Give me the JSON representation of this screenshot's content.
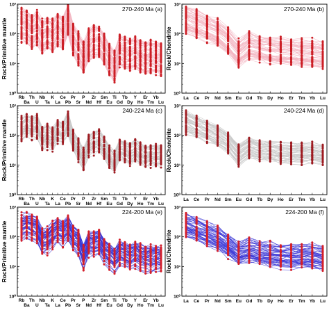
{
  "chart_data": [
    {
      "type": "line",
      "panel_label": "270-240 Ma",
      "letter": "(a)",
      "ylabel": "Rock/Primitive mantle",
      "elements": [
        "Rb",
        "Ba",
        "Th",
        "U",
        "Nb",
        "Ta",
        "K",
        "La",
        "Ce",
        "Pb",
        "Pr",
        "Sr",
        "P",
        "Nd",
        "Zr",
        "Hf",
        "Sm",
        "Eu",
        "Ti",
        "Gd",
        "Tb",
        "Dy",
        "Y",
        "Ho",
        "Er",
        "Tm",
        "Yb",
        "Lu"
      ],
      "tick_rows": {
        "top": [
          "Rb",
          "Th",
          "Nb",
          "K",
          "Ce",
          "Pr",
          "P",
          "Zr",
          "Sm",
          "Ti",
          "Tb",
          "Y",
          "Er",
          "Yb"
        ],
        "bottom": [
          "Ba",
          "U",
          "Ta",
          "La",
          "Pb",
          "Sr",
          "Nd",
          "Hf",
          "Eu",
          "Gd",
          "Dy",
          "Ho",
          "Tm",
          "Lu"
        ]
      },
      "yscale": "log",
      "ylim": [
        1,
        1000
      ],
      "y_ticks": [
        "10⁰",
        "10¹",
        "10²",
        "10³"
      ],
      "line_color": "#f3b9c4",
      "marker_color": "#cc1f26",
      "median_log10": [
        2.3,
        2.25,
        2.1,
        2.2,
        1.9,
        2.0,
        1.95,
        2.15,
        2.0,
        2.5,
        1.8,
        1.5,
        1.2,
        1.6,
        1.75,
        1.75,
        1.5,
        1.15,
        0.9,
        1.45,
        1.35,
        1.3,
        1.35,
        1.25,
        1.2,
        1.2,
        1.2,
        1.15
      ],
      "spread": 0.5,
      "samples": 60
    },
    {
      "type": "line",
      "panel_label": "270-240 Ma",
      "letter": "(b)",
      "ylabel": "Rock/Chondrite",
      "elements": [
        "La",
        "Ce",
        "Pr",
        "Nd",
        "Sm",
        "Eu",
        "Gd",
        "Tb",
        "Dy",
        "Ho",
        "Er",
        "Tm",
        "Yb",
        "Lu"
      ],
      "yscale": "log",
      "ylim": [
        1,
        1000
      ],
      "y_ticks": [
        "10⁰",
        "10¹",
        "10²",
        "10³"
      ],
      "line_color": "#f3b9c4",
      "marker_color": "#cc1f26",
      "median_log10": [
        2.5,
        2.35,
        2.2,
        2.05,
        1.75,
        1.35,
        1.6,
        1.5,
        1.45,
        1.4,
        1.4,
        1.35,
        1.35,
        1.3
      ],
      "spread": 0.42,
      "samples": 60
    },
    {
      "type": "line",
      "panel_label": "240-224 Ma",
      "letter": "(c)",
      "ylabel": "Rock/Primitive mantle",
      "elements": [
        "Rb",
        "Ba",
        "Th",
        "U",
        "Nb",
        "Ta",
        "K",
        "La",
        "Ce",
        "Pb",
        "Pr",
        "Sr",
        "P",
        "Nd",
        "Zr",
        "Hf",
        "Sm",
        "Eu",
        "Ti",
        "Gd",
        "Tb",
        "Dy",
        "Y",
        "Ho",
        "Er",
        "Tm",
        "Yb",
        "Lu"
      ],
      "tick_rows": {
        "top": [
          "Rb",
          "Th",
          "Nb",
          "K",
          "Ce",
          "Pr",
          "P",
          "Zr",
          "Sm",
          "Ti",
          "Tb",
          "Y",
          "Er",
          "Yb"
        ],
        "bottom": [
          "Ba",
          "U",
          "Ta",
          "La",
          "Pb",
          "Sr",
          "Nd",
          "Hf",
          "Eu",
          "Gd",
          "Dy",
          "Ho",
          "Tm",
          "Lu"
        ]
      },
      "yscale": "log",
      "ylim": [
        1,
        1000
      ],
      "y_ticks": [
        "10⁰",
        "10¹",
        "10²",
        "10³"
      ],
      "line_color": "#c9c9c9",
      "marker_color": "#9e1c22",
      "median_log10": [
        2.2,
        2.3,
        2.25,
        2.3,
        1.9,
        1.95,
        1.85,
        2.1,
        2.05,
        2.4,
        1.8,
        1.5,
        1.2,
        1.65,
        1.75,
        1.8,
        1.55,
        1.25,
        1.1,
        1.5,
        1.45,
        1.35,
        1.45,
        1.35,
        1.3,
        1.3,
        1.3,
        1.3
      ],
      "spread": 0.35,
      "samples": 50
    },
    {
      "type": "line",
      "panel_label": "240-224 Ma",
      "letter": "(d)",
      "ylabel": "Rock/Chondrite",
      "elements": [
        "La",
        "Ce",
        "Pr",
        "Nd",
        "Sm",
        "Eu",
        "Gd",
        "Tb",
        "Dy",
        "Ho",
        "Er",
        "Tm",
        "Yb",
        "Lu"
      ],
      "yscale": "log",
      "ylim": [
        1,
        1000
      ],
      "y_ticks": [
        "10⁰",
        "10¹",
        "10²",
        "10³"
      ],
      "line_color": "#c9c9c9",
      "marker_color": "#9e1c22",
      "median_log10": [
        2.45,
        2.3,
        2.15,
        2.0,
        1.75,
        1.35,
        1.6,
        1.5,
        1.45,
        1.4,
        1.4,
        1.4,
        1.4,
        1.35
      ],
      "spread": 0.35,
      "samples": 50
    },
    {
      "type": "line",
      "panel_label": "224-200 Ma",
      "letter": "(e)",
      "ylabel": "Rock/Primitive mantle",
      "elements": [
        "Rb",
        "Ba",
        "Th",
        "U",
        "Nb",
        "Ta",
        "K",
        "La",
        "Ce",
        "Pb",
        "Pr",
        "Sr",
        "P",
        "Nd",
        "Zr",
        "Hf",
        "Sm",
        "Eu",
        "Ti",
        "Gd",
        "Tb",
        "Dy",
        "Y",
        "Ho",
        "Er",
        "Tm",
        "Yb",
        "Lu"
      ],
      "tick_rows": {
        "top": [
          "Rb",
          "Th",
          "Nb",
          "K",
          "Ce",
          "Pr",
          "P",
          "Zr",
          "Sm",
          "Ti",
          "Tb",
          "Y",
          "Er",
          "Yb"
        ],
        "bottom": [
          "Ba",
          "U",
          "Ta",
          "La",
          "Pb",
          "Sr",
          "Nd",
          "Hf",
          "Eu",
          "Gd",
          "Dy",
          "Ho",
          "Tm",
          "Lu"
        ]
      },
      "yscale": "log",
      "ylim": [
        1,
        1000
      ],
      "y_ticks": [
        "10⁰",
        "10¹",
        "10²",
        "10³"
      ],
      "line_color": "#3b37d6",
      "marker_color": "#d41f2a",
      "median_log10": [
        2.3,
        2.35,
        2.3,
        2.2,
        1.8,
        1.85,
        2.05,
        2.2,
        2.1,
        2.25,
        1.95,
        1.8,
        1.3,
        1.75,
        1.75,
        1.8,
        1.5,
        1.35,
        1.2,
        1.45,
        1.4,
        1.3,
        1.4,
        1.3,
        1.25,
        1.25,
        1.25,
        1.25
      ],
      "spread": 0.4,
      "samples": 55
    },
    {
      "type": "line",
      "panel_label": "224-200 Ma",
      "letter": "(f)",
      "ylabel": "Rock/Chondrite",
      "elements": [
        "La",
        "Ce",
        "Pr",
        "Nd",
        "Sm",
        "Eu",
        "Gd",
        "Tb",
        "Dy",
        "Ho",
        "Er",
        "Tm",
        "Yb",
        "Lu"
      ],
      "yscale": "log",
      "ylim": [
        1,
        1000
      ],
      "y_ticks": [
        "10⁰",
        "10¹",
        "10²",
        "10³"
      ],
      "line_color": "#3b37d6",
      "marker_color": "#d41f2a",
      "median_log10": [
        2.4,
        2.25,
        2.1,
        1.95,
        1.7,
        1.45,
        1.55,
        1.45,
        1.4,
        1.35,
        1.35,
        1.35,
        1.35,
        1.3
      ],
      "spread": 0.38,
      "samples": 55
    }
  ]
}
